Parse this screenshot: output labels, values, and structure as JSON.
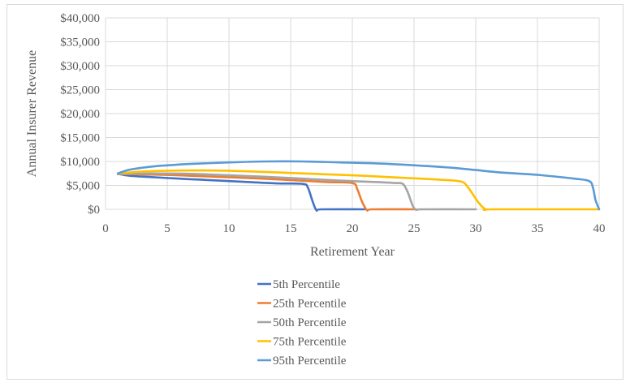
{
  "chart_data": {
    "type": "line",
    "title": "",
    "xlabel": "Retirement Year",
    "ylabel": "Annual Insurer Revenue",
    "xlim": [
      0,
      40
    ],
    "ylim": [
      0,
      40000
    ],
    "x_ticks": [
      0,
      5,
      10,
      15,
      20,
      25,
      30,
      35,
      40
    ],
    "y_ticks": [
      0,
      5000,
      10000,
      15000,
      20000,
      25000,
      30000,
      35000,
      40000
    ],
    "y_tick_labels": [
      "$0",
      "$5,000",
      "$10,000",
      "$15,000",
      "$20,000",
      "$25,000",
      "$30,000",
      "$35,000",
      "$40,000"
    ],
    "grid": "vertical and horizontal",
    "legend_position": "bottom",
    "series": [
      {
        "name": "5th Percentile",
        "color": "#4472c4",
        "points": [
          [
            1,
            7400
          ],
          [
            2,
            7000
          ],
          [
            4,
            6700
          ],
          [
            6,
            6400
          ],
          [
            8,
            6150
          ],
          [
            10,
            5900
          ],
          [
            12,
            5650
          ],
          [
            14,
            5400
          ],
          [
            16,
            5300
          ],
          [
            16.4,
            4500
          ],
          [
            16.8,
            1500
          ],
          [
            17.1,
            -200
          ],
          [
            17.5,
            0
          ],
          [
            21,
            0
          ]
        ]
      },
      {
        "name": "25th Percentile",
        "color": "#ed7d31",
        "points": [
          [
            1,
            7400
          ],
          [
            3,
            7300
          ],
          [
            6,
            7100
          ],
          [
            9,
            6800
          ],
          [
            12,
            6500
          ],
          [
            15,
            6100
          ],
          [
            18,
            5700
          ],
          [
            20,
            5500
          ],
          [
            20.4,
            4200
          ],
          [
            20.8,
            1500
          ],
          [
            21.2,
            -200
          ],
          [
            21.6,
            0
          ],
          [
            25,
            0
          ]
        ]
      },
      {
        "name": "50th Percentile",
        "color": "#a5a5a5",
        "points": [
          [
            1,
            7400
          ],
          [
            4,
            7500
          ],
          [
            7,
            7400
          ],
          [
            10,
            7100
          ],
          [
            13,
            6800
          ],
          [
            16,
            6400
          ],
          [
            19,
            6000
          ],
          [
            22,
            5700
          ],
          [
            23.5,
            5500
          ],
          [
            24.1,
            5300
          ],
          [
            24.5,
            3500
          ],
          [
            24.9,
            700
          ],
          [
            25.2,
            -100
          ],
          [
            25.6,
            0
          ],
          [
            30,
            0
          ]
        ]
      },
      {
        "name": "75th Percentile",
        "color": "#ffc000",
        "points": [
          [
            1,
            7500
          ],
          [
            3,
            7900
          ],
          [
            6,
            8100
          ],
          [
            9,
            8100
          ],
          [
            12,
            7900
          ],
          [
            15,
            7600
          ],
          [
            18,
            7300
          ],
          [
            21,
            7000
          ],
          [
            24,
            6600
          ],
          [
            27,
            6200
          ],
          [
            28.8,
            5800
          ],
          [
            29.4,
            4500
          ],
          [
            30.2,
            1500
          ],
          [
            30.8,
            0
          ],
          [
            31.5,
            0
          ],
          [
            40,
            0
          ]
        ]
      },
      {
        "name": "95th Percentile",
        "color": "#5b9bd5",
        "points": [
          [
            1,
            7500
          ],
          [
            2,
            8300
          ],
          [
            4,
            9000
          ],
          [
            7,
            9500
          ],
          [
            10,
            9800
          ],
          [
            13,
            10000
          ],
          [
            16,
            10000
          ],
          [
            19,
            9800
          ],
          [
            22,
            9600
          ],
          [
            25,
            9200
          ],
          [
            28,
            8700
          ],
          [
            30,
            8200
          ],
          [
            32,
            7700
          ],
          [
            35,
            7200
          ],
          [
            38,
            6400
          ],
          [
            39.2,
            5900
          ],
          [
            39.5,
            4500
          ],
          [
            39.7,
            2000
          ],
          [
            40,
            0
          ]
        ]
      }
    ]
  }
}
